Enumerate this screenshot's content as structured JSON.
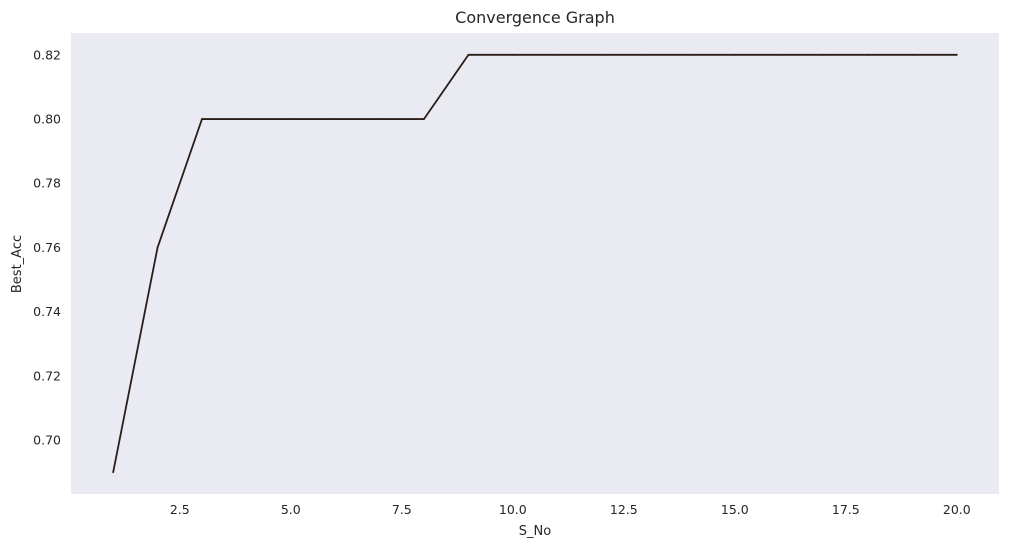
{
  "chart_data": {
    "type": "line",
    "title": "Convergence Graph",
    "xlabel": "S_No",
    "ylabel": "Best_Acc",
    "xlim": [
      0.05,
      20.95
    ],
    "ylim": [
      0.6832,
      0.8268
    ],
    "xticks": [
      2.5,
      5.0,
      7.5,
      10.0,
      12.5,
      15.0,
      17.5,
      20.0
    ],
    "xtick_labels": [
      "2.5",
      "5.0",
      "7.5",
      "10.0",
      "12.5",
      "15.0",
      "17.5",
      "20.0"
    ],
    "yticks": [
      0.7,
      0.72,
      0.74,
      0.76,
      0.78,
      0.8,
      0.82
    ],
    "ytick_labels": [
      "0.70",
      "0.72",
      "0.74",
      "0.76",
      "0.78",
      "0.80",
      "0.82"
    ],
    "grid": false,
    "legend": "none",
    "background": "#eaeaf2",
    "series": [
      {
        "color": "#2b1d17",
        "x": [
          1,
          2,
          3,
          4,
          5,
          6,
          7,
          8,
          9,
          10,
          11,
          12,
          13,
          14,
          15,
          16,
          17,
          18,
          19,
          20
        ],
        "y": [
          0.69,
          0.76,
          0.8,
          0.8,
          0.8,
          0.8,
          0.8,
          0.8,
          0.82,
          0.82,
          0.82,
          0.82,
          0.82,
          0.82,
          0.82,
          0.82,
          0.82,
          0.82,
          0.82,
          0.82
        ]
      }
    ]
  }
}
